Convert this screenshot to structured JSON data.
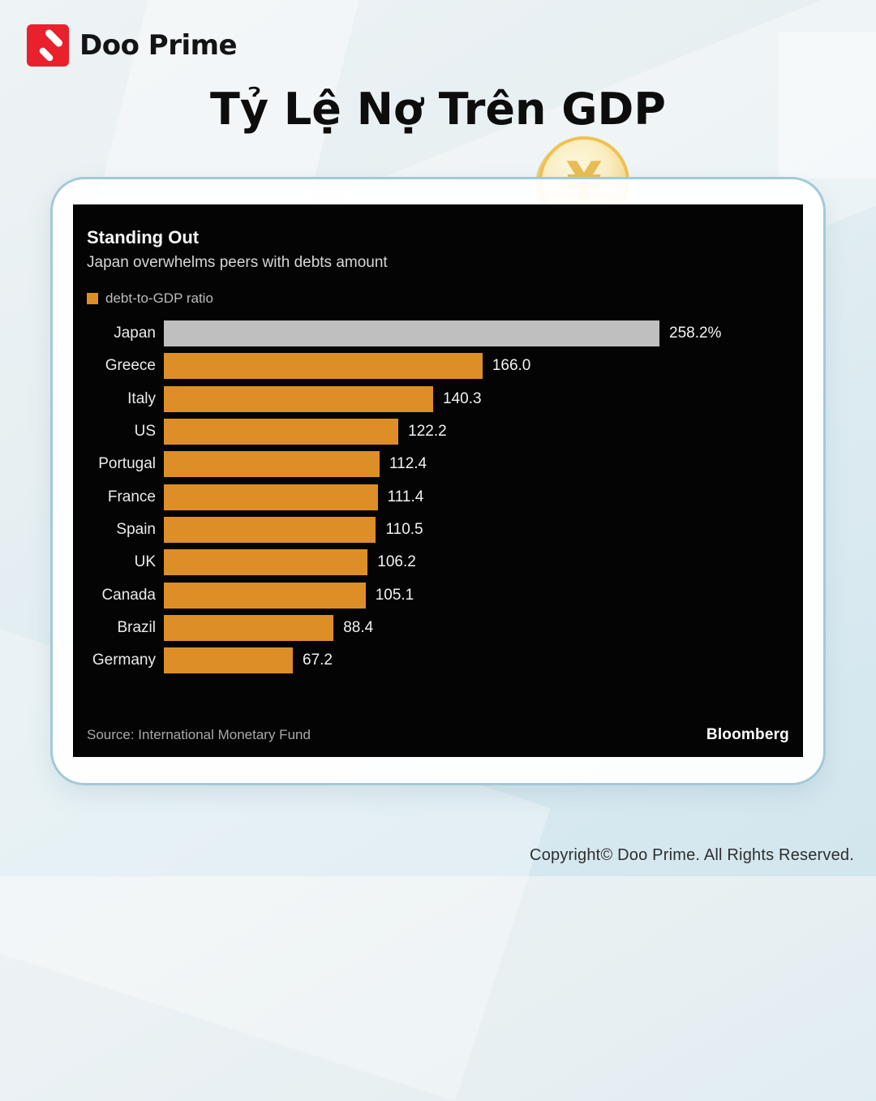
{
  "brand": {
    "name": "Doo Prime",
    "logo_color": "#e8212d"
  },
  "page_title": "Tỷ Lệ Nợ Trên GDP",
  "coin": {
    "symbol": "¥"
  },
  "chart_data": {
    "type": "bar",
    "orientation": "horizontal",
    "title": "Standing Out",
    "subtitle": "Japan overwhelms peers with debts amount",
    "legend": [
      {
        "label": "debt-to-GDP ratio",
        "color": "#de8e27"
      }
    ],
    "legend_position": "top-left",
    "grid": false,
    "categories": [
      "Japan",
      "Greece",
      "Italy",
      "US",
      "Portugal",
      "France",
      "Spain",
      "UK",
      "Canada",
      "Brazil",
      "Germany"
    ],
    "values": [
      258.2,
      166.0,
      140.3,
      122.2,
      112.4,
      111.4,
      110.5,
      106.2,
      105.1,
      88.4,
      67.2
    ],
    "value_labels": [
      "258.2%",
      "166.0",
      "140.3",
      "122.2",
      "112.4",
      "111.4",
      "110.5",
      "106.2",
      "105.1",
      "88.4",
      "67.2"
    ],
    "bar_colors": [
      "#bfbfbf",
      "#de8e27",
      "#de8e27",
      "#de8e27",
      "#de8e27",
      "#de8e27",
      "#de8e27",
      "#de8e27",
      "#de8e27",
      "#de8e27",
      "#de8e27"
    ],
    "xlim": [
      0,
      258.2
    ],
    "source": "Source: International Monetary Fund",
    "attribution": "Bloomberg",
    "colors": {
      "panel_background": "#040404",
      "highlight_bar": "#bfbfbf",
      "default_bar": "#de8e27",
      "card_border": "#a4c9d6"
    }
  },
  "copyright": "Copyright© Doo Prime. All Rights Reserved."
}
